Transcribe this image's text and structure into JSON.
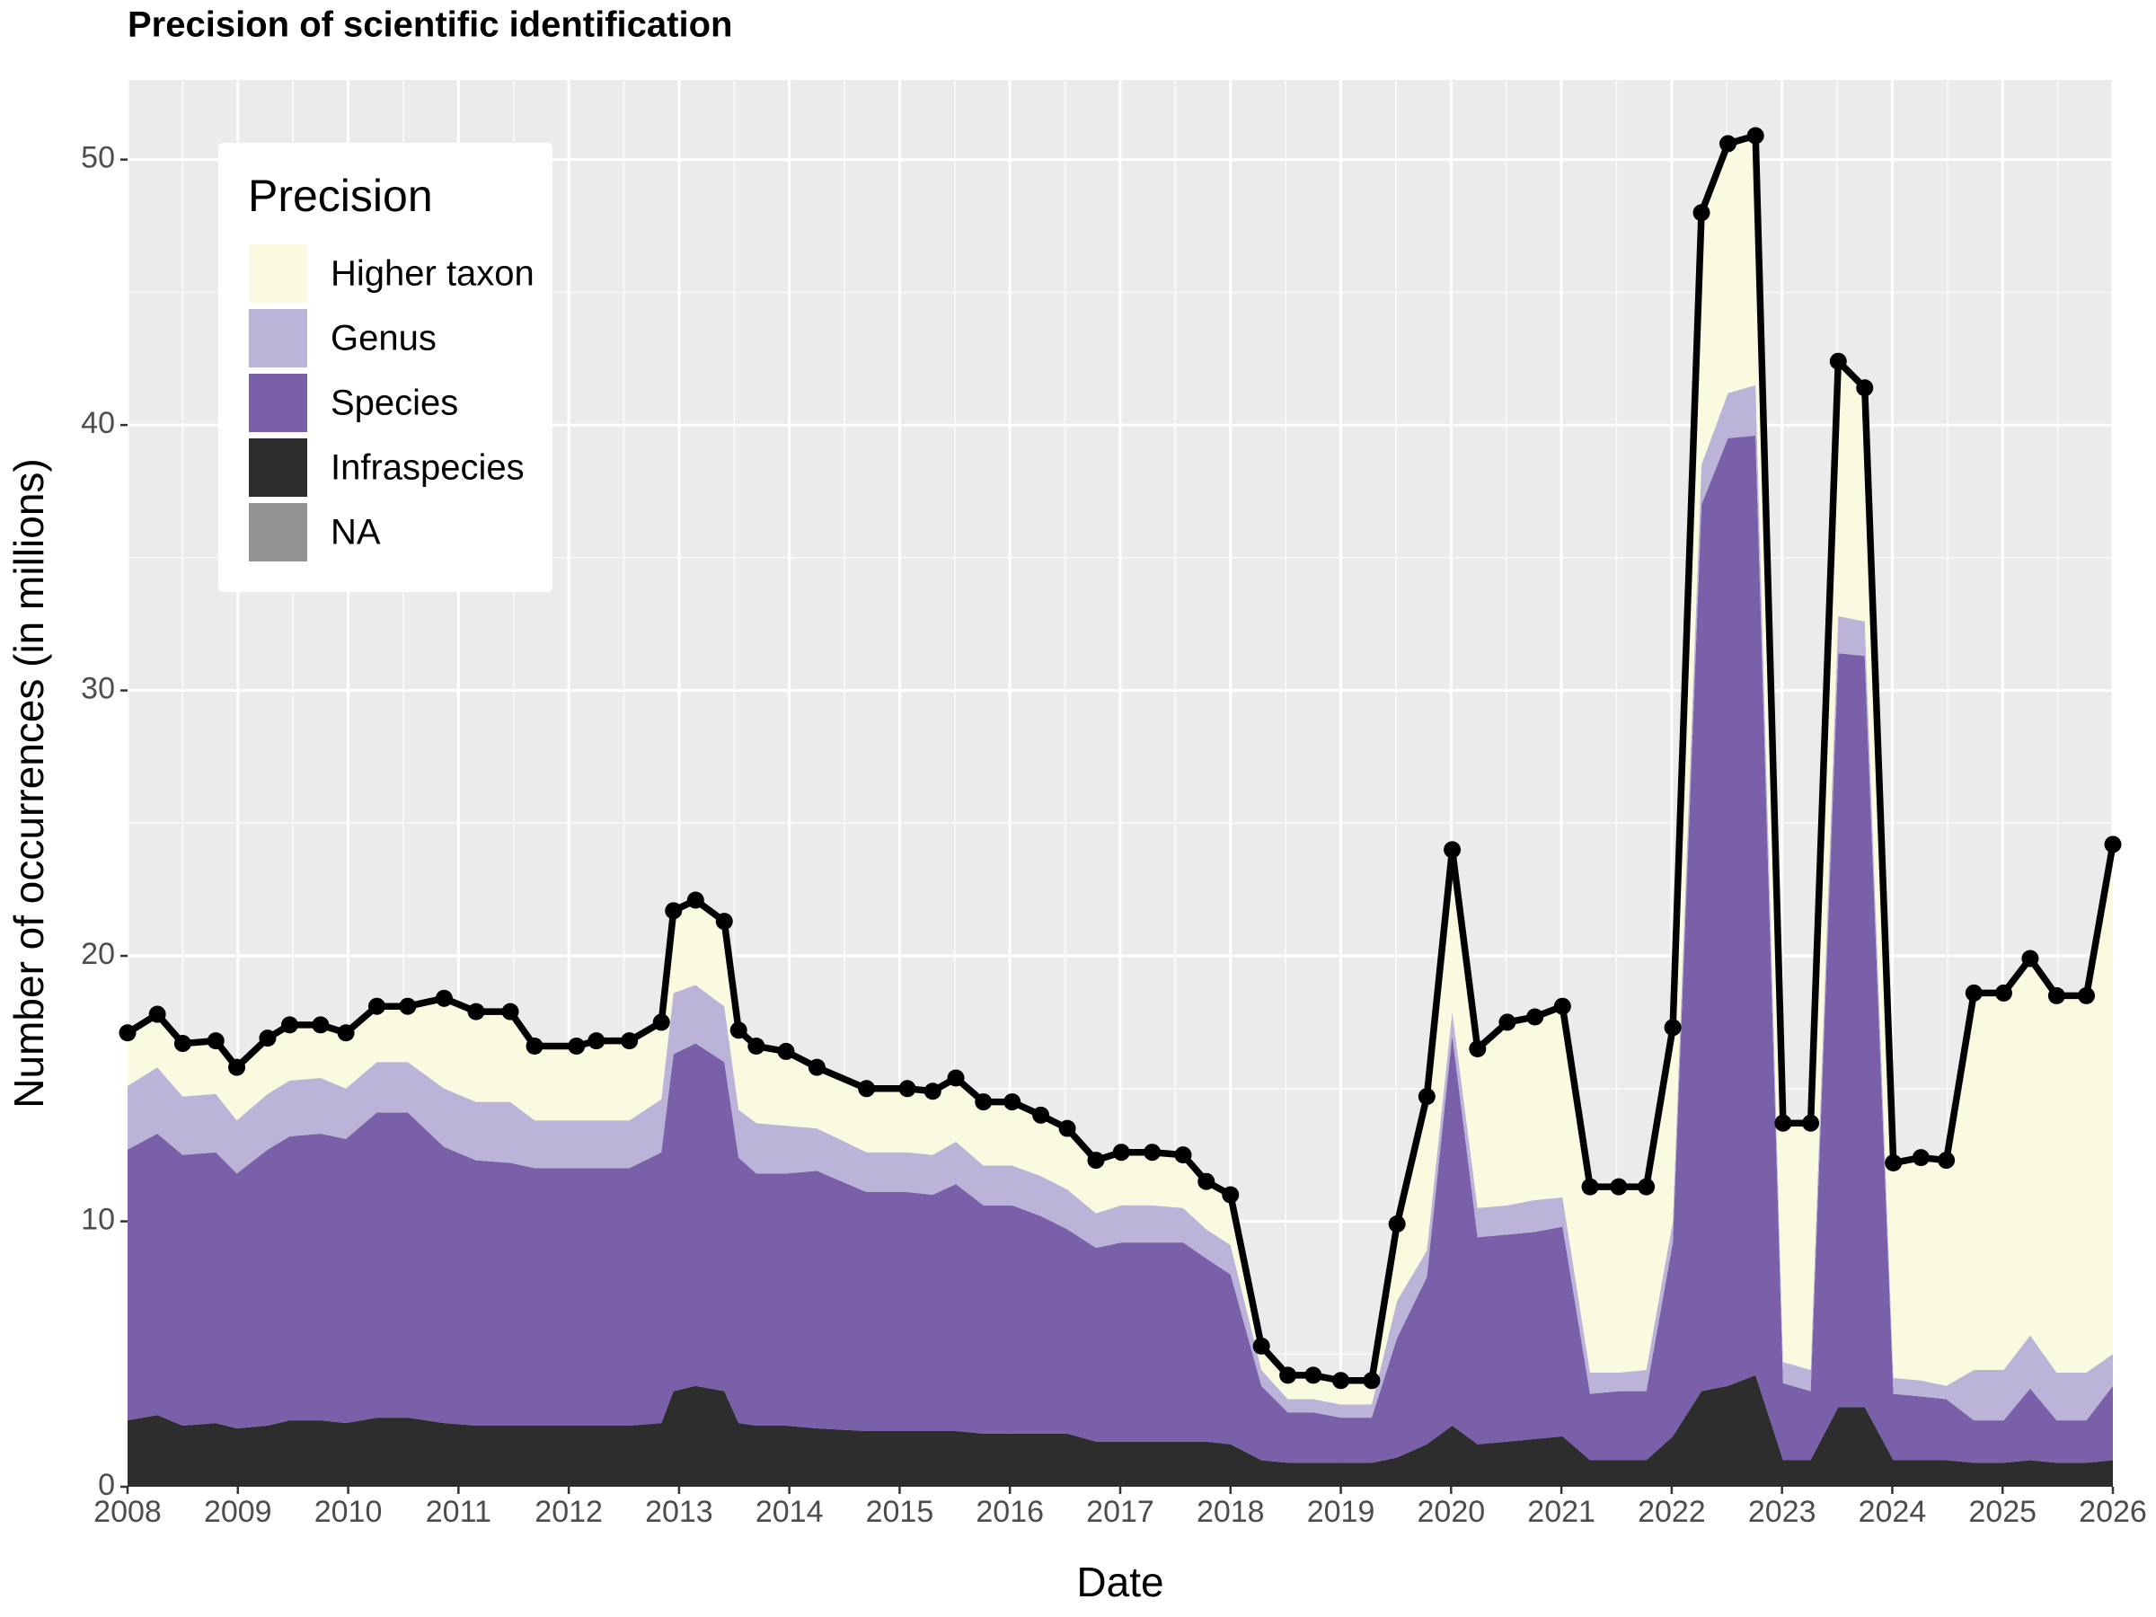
{
  "chart_data": {
    "type": "stacked-area",
    "title": "Precision of scientific identification",
    "x_label": "Date",
    "y_label": "Number of occurrences (in millions)",
    "legend_title": "Precision",
    "legend_position": "top-left",
    "grid": true,
    "x": [
      2008.0,
      2008.27,
      2008.5,
      2008.8,
      2008.99,
      2009.27,
      2009.47,
      2009.75,
      2009.98,
      2010.26,
      2010.54,
      2010.87,
      2011.16,
      2011.47,
      2011.69,
      2012.07,
      2012.25,
      2012.55,
      2012.84,
      2012.95,
      2013.15,
      2013.41,
      2013.54,
      2013.7,
      2013.97,
      2014.25,
      2014.7,
      2015.07,
      2015.3,
      2015.51,
      2015.76,
      2016.02,
      2016.28,
      2016.52,
      2016.78,
      2017.01,
      2017.29,
      2017.57,
      2017.78,
      2018.0,
      2018.28,
      2018.52,
      2018.75,
      2019.0,
      2019.28,
      2019.51,
      2019.78,
      2020.01,
      2020.24,
      2020.51,
      2020.76,
      2021.01,
      2021.26,
      2021.52,
      2021.77,
      2022.01,
      2022.27,
      2022.51,
      2022.76,
      2023.01,
      2023.26,
      2023.51,
      2023.75,
      2024.01,
      2024.26,
      2024.49,
      2024.74,
      2025.01,
      2025.25,
      2025.49,
      2025.76,
      2026.0
    ],
    "xlim": [
      2008,
      2026
    ],
    "xticks": [
      2008,
      2009,
      2010,
      2011,
      2012,
      2013,
      2014,
      2015,
      2016,
      2017,
      2018,
      2019,
      2020,
      2021,
      2022,
      2023,
      2024,
      2025,
      2026
    ],
    "ylim": [
      0,
      53
    ],
    "yticks": [
      0,
      10,
      20,
      30,
      40,
      50
    ],
    "line_color": "#000000",
    "series": [
      {
        "name": "Higher taxon",
        "color": "#fafae1",
        "values": [
          2.0,
          2.0,
          2.0,
          2.0,
          2.0,
          2.1,
          2.1,
          2.0,
          2.1,
          2.1,
          2.1,
          3.4,
          3.4,
          3.4,
          2.8,
          2.8,
          3.0,
          3.0,
          2.9,
          3.1,
          3.2,
          3.2,
          3.0,
          2.9,
          2.8,
          2.3,
          2.4,
          2.4,
          2.4,
          2.4,
          2.4,
          2.4,
          2.3,
          2.3,
          2.0,
          2.0,
          2.0,
          2.0,
          1.8,
          1.9,
          0.9,
          0.9,
          0.9,
          0.9,
          0.9,
          2.9,
          5.8,
          6.1,
          6.0,
          6.9,
          6.9,
          7.2,
          7.0,
          7.0,
          6.9,
          7.3,
          9.5,
          9.4,
          9.4,
          9.0,
          9.3,
          9.6,
          8.8,
          8.1,
          8.4,
          8.5,
          14.2,
          14.2,
          14.2,
          14.2,
          14.2,
          19.2
        ]
      },
      {
        "name": "Genus",
        "color": "#bcb4d8",
        "values": [
          2.4,
          2.5,
          2.2,
          2.2,
          2.0,
          2.1,
          2.1,
          2.1,
          1.9,
          1.9,
          1.9,
          2.2,
          2.2,
          2.3,
          1.8,
          1.8,
          1.8,
          1.8,
          2.0,
          2.3,
          2.2,
          2.1,
          1.8,
          1.9,
          1.8,
          1.6,
          1.5,
          1.5,
          1.5,
          1.6,
          1.5,
          1.5,
          1.5,
          1.5,
          1.3,
          1.4,
          1.4,
          1.3,
          1.1,
          1.1,
          0.6,
          0.5,
          0.5,
          0.5,
          0.5,
          1.4,
          1.0,
          0.9,
          1.1,
          1.1,
          1.2,
          1.1,
          0.8,
          0.7,
          0.8,
          0.8,
          1.5,
          1.7,
          1.9,
          0.8,
          0.8,
          1.4,
          1.3,
          0.6,
          0.6,
          0.5,
          1.9,
          1.9,
          2.0,
          1.8,
          1.8,
          1.2
        ]
      },
      {
        "name": "Species",
        "color": "#7a60a9",
        "values": [
          10.2,
          10.6,
          10.2,
          10.2,
          9.6,
          10.4,
          10.7,
          10.8,
          10.7,
          11.5,
          11.5,
          10.4,
          10.0,
          9.9,
          9.7,
          9.7,
          9.7,
          9.7,
          10.2,
          12.7,
          12.9,
          12.4,
          10.0,
          9.5,
          9.5,
          9.7,
          9.0,
          9.0,
          8.9,
          9.3,
          8.6,
          8.6,
          8.2,
          7.7,
          7.3,
          7.5,
          7.5,
          7.5,
          6.9,
          6.4,
          2.8,
          1.9,
          1.9,
          1.7,
          1.7,
          4.5,
          6.3,
          14.7,
          7.8,
          7.8,
          7.8,
          7.9,
          2.5,
          2.6,
          2.6,
          7.3,
          33.4,
          35.7,
          35.4,
          2.9,
          2.6,
          28.4,
          28.3,
          2.5,
          2.4,
          2.3,
          1.6,
          1.6,
          2.7,
          1.6,
          1.6,
          2.8
        ]
      },
      {
        "name": "Infraspecies",
        "color": "#2d2d2d",
        "values": [
          2.5,
          2.7,
          2.3,
          2.4,
          2.2,
          2.3,
          2.5,
          2.5,
          2.4,
          2.6,
          2.6,
          2.4,
          2.3,
          2.3,
          2.3,
          2.3,
          2.3,
          2.3,
          2.4,
          3.6,
          3.8,
          3.6,
          2.4,
          2.3,
          2.3,
          2.2,
          2.1,
          2.1,
          2.1,
          2.1,
          2.0,
          2.0,
          2.0,
          2.0,
          1.7,
          1.7,
          1.7,
          1.7,
          1.7,
          1.6,
          1.0,
          0.9,
          0.9,
          0.9,
          0.9,
          1.1,
          1.6,
          2.3,
          1.6,
          1.7,
          1.8,
          1.9,
          1.0,
          1.0,
          1.0,
          1.9,
          3.6,
          3.8,
          4.2,
          1.0,
          1.0,
          3.0,
          3.0,
          1.0,
          1.0,
          1.0,
          0.9,
          0.9,
          1.0,
          0.9,
          0.9,
          1.0
        ]
      },
      {
        "name": "NA",
        "color": "#939393",
        "values": [
          0,
          0,
          0,
          0,
          0,
          0,
          0,
          0,
          0,
          0,
          0,
          0,
          0,
          0,
          0,
          0,
          0,
          0,
          0,
          0,
          0,
          0,
          0,
          0,
          0,
          0,
          0,
          0,
          0,
          0,
          0,
          0,
          0,
          0,
          0,
          0,
          0,
          0,
          0,
          0,
          0,
          0,
          0,
          0,
          0,
          0,
          0,
          0,
          0,
          0,
          0,
          0,
          0,
          0,
          0,
          0,
          0,
          0,
          0,
          0,
          0,
          0,
          0,
          0,
          0,
          0,
          0,
          0,
          0,
          0,
          0,
          0
        ]
      }
    ]
  }
}
